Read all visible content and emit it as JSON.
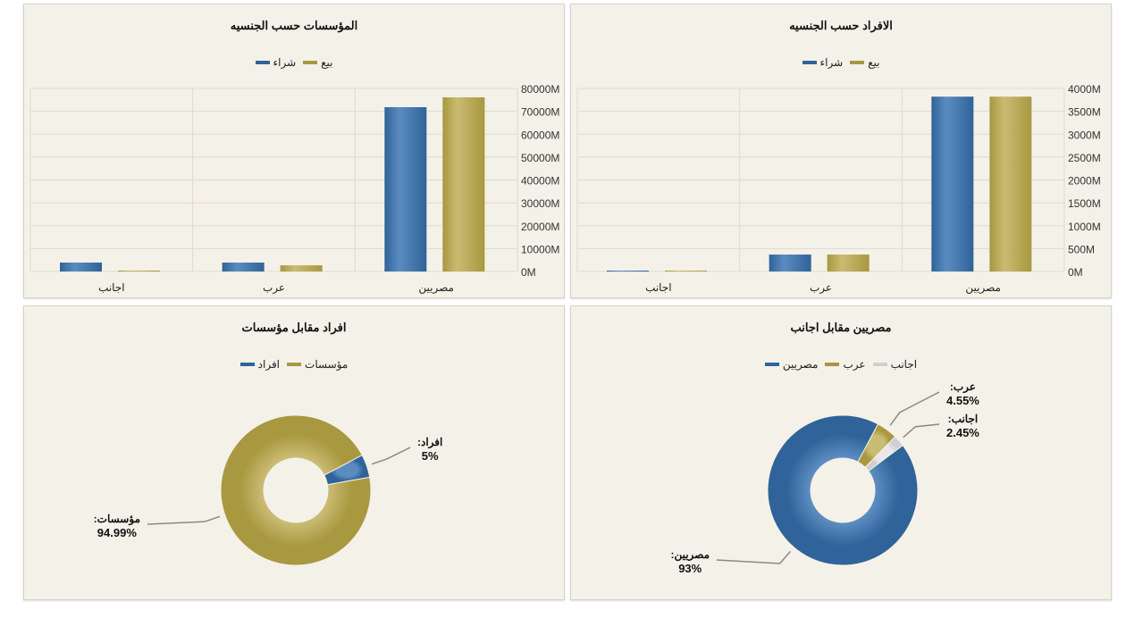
{
  "colors": {
    "buy": "#2f6399",
    "sell": "#a89840",
    "foreign": "#cfcfcf"
  },
  "chart_data": [
    {
      "type": "bar",
      "title": "المؤسسات حسب الجنسيه",
      "categories": [
        "مصريين",
        "عرب",
        "اجانب"
      ],
      "series": [
        {
          "name": "شراء",
          "values": [
            71800,
            3900,
            3900
          ]
        },
        {
          "name": "بيع",
          "values": [
            76100,
            2700,
            400
          ]
        }
      ],
      "yticks": [
        "0M",
        "10000M",
        "20000M",
        "30000M",
        "40000M",
        "50000M",
        "60000M",
        "70000M",
        "80000M"
      ],
      "ylim": [
        0,
        80000
      ],
      "unit": "M",
      "grid": true,
      "legend": "top"
    },
    {
      "type": "bar",
      "title": "الافراد حسب الجنسيه",
      "categories": [
        "مصريين",
        "عرب",
        "اجانب"
      ],
      "series": [
        {
          "name": "شراء",
          "values": [
            3820,
            370,
            10
          ]
        },
        {
          "name": "بيع",
          "values": [
            3820,
            370,
            8
          ]
        }
      ],
      "yticks": [
        "0M",
        "500M",
        "1000M",
        "1500M",
        "2000M",
        "2500M",
        "3000M",
        "3500M",
        "4000M"
      ],
      "ylim": [
        0,
        4000
      ],
      "unit": "M",
      "grid": true,
      "legend": "top"
    },
    {
      "type": "pie",
      "title": "افراد مقابل مؤسسات",
      "slices": [
        {
          "name": "افراد",
          "value": 5,
          "label": "افراد:",
          "pct": "5%"
        },
        {
          "name": "مؤسسات",
          "value": 94.99,
          "label": "مؤسسات:",
          "pct": "94.99%"
        }
      ],
      "legend": "top"
    },
    {
      "type": "pie",
      "title": "مصريين مقابل اجانب",
      "slices": [
        {
          "name": "عرب",
          "value": 4.55,
          "label": "عرب:",
          "pct": "4.55%"
        },
        {
          "name": "اجانب",
          "value": 2.45,
          "label": "اجانب:",
          "pct": "2.45%"
        },
        {
          "name": "مصريين",
          "value": 93,
          "label": "مصريين:",
          "pct": "93%"
        }
      ],
      "legend": "top"
    }
  ]
}
